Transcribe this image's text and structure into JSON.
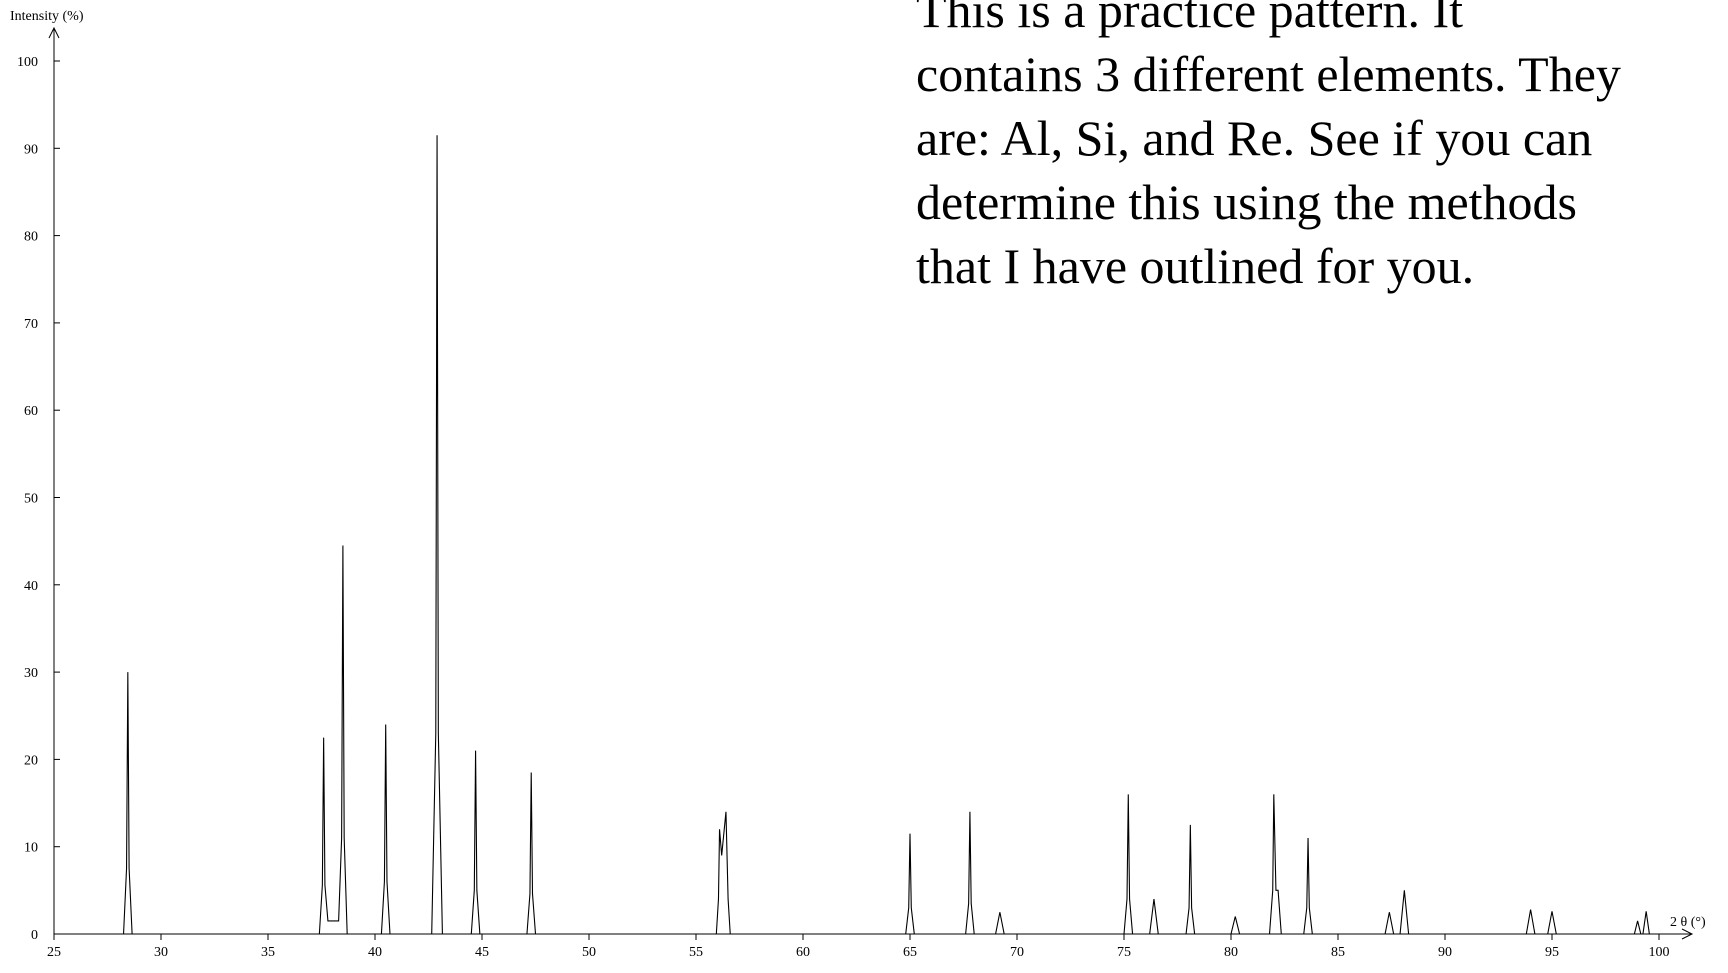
{
  "chart_data": {
    "type": "line",
    "y_label": "Intensity (%)",
    "x_label": "2 θ (°)",
    "annotation": [
      "This is a practice pattern.  It",
      "contains 3 different elements.  They",
      "are:  Al, Si, and Re.  See if you can",
      "determine this using the methods",
      "that I have outlined for you."
    ],
    "xlim": [
      25,
      100
    ],
    "ylim": [
      0,
      100
    ],
    "xticks": [
      25,
      30,
      35,
      40,
      45,
      50,
      55,
      60,
      65,
      70,
      75,
      80,
      85,
      90,
      95,
      100
    ],
    "yticks": [
      0,
      10,
      20,
      30,
      40,
      50,
      60,
      70,
      80,
      90,
      100
    ],
    "color": "#000000",
    "x": [
      25,
      28.25,
      28.39,
      28.45,
      28.51,
      28.65,
      37.4,
      37.54,
      37.6,
      37.66,
      37.8,
      38.3,
      38.44,
      38.5,
      38.56,
      38.7,
      40.3,
      40.44,
      40.5,
      40.56,
      40.7,
      42.65,
      42.84,
      42.9,
      42.96,
      43.15,
      44.5,
      44.64,
      44.7,
      44.76,
      44.9,
      47.1,
      47.24,
      47.3,
      47.36,
      47.5,
      55.95,
      56.05,
      56.1,
      56.2,
      56.4,
      56.5,
      56.6,
      64.8,
      64.94,
      65.0,
      65.06,
      65.2,
      67.6,
      67.74,
      67.8,
      67.86,
      68.0,
      69.0,
      69.2,
      69.4,
      75.0,
      75.14,
      75.2,
      75.26,
      75.4,
      76.2,
      76.4,
      76.6,
      77.9,
      78.04,
      78.1,
      78.16,
      78.3,
      80.0,
      80.2,
      80.4,
      81.8,
      81.95,
      82.0,
      82.1,
      82.2,
      82.35,
      83.4,
      83.54,
      83.6,
      83.66,
      83.8,
      87.2,
      87.4,
      87.6,
      87.9,
      88.1,
      88.3,
      93.8,
      94.0,
      94.2,
      94.8,
      95.0,
      95.2,
      98.85,
      99.0,
      99.15,
      99.25,
      99.4,
      99.55,
      100
    ],
    "values": [
      0,
      0,
      7.5,
      30,
      7.5,
      0,
      0,
      5.6,
      22.5,
      5.6,
      1.5,
      1.5,
      11,
      44.5,
      11,
      0,
      0,
      6,
      24,
      6,
      0,
      0,
      23,
      91.5,
      23,
      0,
      0,
      5,
      21,
      5,
      0,
      0,
      4.6,
      18.5,
      4.6,
      0,
      0,
      4,
      12,
      9,
      14,
      4,
      0,
      0,
      3,
      11.5,
      3,
      0,
      0,
      3.5,
      14,
      3.5,
      0,
      0,
      2.5,
      0,
      0,
      4,
      16,
      4,
      0,
      0,
      4,
      0,
      0,
      3,
      12.5,
      3,
      0,
      0,
      2,
      0,
      0,
      5,
      16,
      5,
      5,
      0,
      0,
      3,
      11,
      3,
      0,
      0,
      2.5,
      0,
      0,
      5,
      0,
      0,
      2.8,
      0,
      0,
      2.6,
      0,
      0,
      1.5,
      0,
      0,
      2.6,
      0,
      0
    ]
  }
}
